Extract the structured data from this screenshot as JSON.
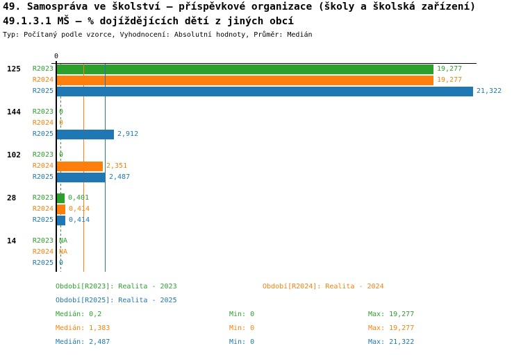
{
  "header": {
    "title1": "49. Samospráva ve školství – příspěvkové organizace (školy a školská zařízení)",
    "title2": "49.1.3.1 MŠ – % dojíždějících dětí z jiných obcí",
    "meta": "Typ: Počítaný podle vzorce, Vyhodnocení: Absolutní hodnoty, Průměr: Medián"
  },
  "chart_data": {
    "type": "bar",
    "orientation": "horizontal",
    "unit": "%",
    "axis": {
      "zero_label": "0",
      "min": 0,
      "max_value_shown": 21.322
    },
    "series": [
      "R2023",
      "R2024",
      "R2025"
    ],
    "series_colors": {
      "R2023": "#2ca02c",
      "R2024": "#ff7f0e",
      "R2025": "#1f77b4"
    },
    "groups": [
      {
        "label": "125",
        "values": [
          {
            "series": "R2023",
            "value": 19.277,
            "display": "19,277"
          },
          {
            "series": "R2024",
            "value": 19.277,
            "display": "19,277"
          },
          {
            "series": "R2025",
            "value": 21.322,
            "display": "21,322"
          }
        ]
      },
      {
        "label": "144",
        "values": [
          {
            "series": "R2023",
            "value": 0,
            "display": "0"
          },
          {
            "series": "R2024",
            "value": 0,
            "display": "0"
          },
          {
            "series": "R2025",
            "value": 2.912,
            "display": "2,912"
          }
        ]
      },
      {
        "label": "102",
        "values": [
          {
            "series": "R2023",
            "value": 0,
            "display": "0"
          },
          {
            "series": "R2024",
            "value": 2.351,
            "display": "2,351"
          },
          {
            "series": "R2025",
            "value": 2.487,
            "display": "2,487"
          }
        ]
      },
      {
        "label": "28",
        "values": [
          {
            "series": "R2023",
            "value": 0.401,
            "display": "0,401"
          },
          {
            "series": "R2024",
            "value": 0.414,
            "display": "0,414"
          },
          {
            "series": "R2025",
            "value": 0.414,
            "display": "0,414"
          }
        ]
      },
      {
        "label": "14",
        "values": [
          {
            "series": "R2023",
            "value": null,
            "display": "NA"
          },
          {
            "series": "R2024",
            "value": null,
            "display": "NA"
          },
          {
            "series": "R2025",
            "value": 0,
            "display": "0"
          }
        ]
      }
    ],
    "medians": [
      {
        "series": "R2023",
        "value": 0.2,
        "style": "dashed"
      },
      {
        "series": "R2024",
        "value": 1.383,
        "style": "solid"
      },
      {
        "series": "R2025",
        "value": 2.487,
        "style": "solid"
      }
    ]
  },
  "legend": {
    "items": [
      {
        "series": "R2023",
        "text": "Období[R2023]: Realita - 2023"
      },
      {
        "series": "R2024",
        "text": "Období[R2024]: Realita - 2024"
      },
      {
        "series": "R2025",
        "text": "Období[R2025]: Realita - 2025"
      }
    ]
  },
  "stats": {
    "rows": [
      {
        "series": "R2023",
        "median": "Medián: 0,2",
        "min": "Min: 0",
        "max": "Max: 19,277"
      },
      {
        "series": "R2024",
        "median": "Medián: 1,383",
        "min": "Min: 0",
        "max": "Max: 19,277"
      },
      {
        "series": "R2025",
        "median": "Medián: 2,487",
        "min": "Min: 0",
        "max": "Max: 21,322"
      }
    ]
  }
}
